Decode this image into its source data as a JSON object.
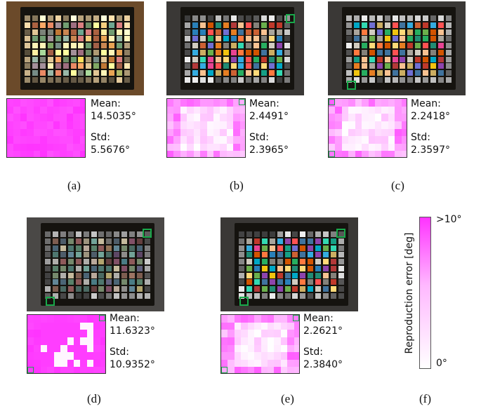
{
  "panels": [
    {
      "id": "a",
      "caption": "(a)",
      "mean_label": "Mean:",
      "mean_value": "14.5035°",
      "std_label": "Std:",
      "std_value": "5.5676°",
      "tone": "warm",
      "error_level": "uniform-high"
    },
    {
      "id": "b",
      "caption": "(b)",
      "mean_label": "Mean:",
      "mean_value": "2.4491°",
      "std_label": "Std:",
      "std_value": "2.3965°",
      "tone": "neutral",
      "error_level": "low"
    },
    {
      "id": "c",
      "caption": "(c)",
      "mean_label": "Mean:",
      "mean_value": "2.2418°",
      "std_label": "Std:",
      "std_value": "2.3597°",
      "tone": "neutral",
      "error_level": "low"
    },
    {
      "id": "d",
      "caption": "(d)",
      "mean_label": "Mean:",
      "mean_value": "11.6323°",
      "std_label": "Std:",
      "std_value": "10.9352°",
      "tone": "gray",
      "error_level": "high"
    },
    {
      "id": "e",
      "caption": "(e)",
      "mean_label": "Mean:",
      "mean_value": "2.2621°",
      "std_label": "Std:",
      "std_value": "2.3840°",
      "tone": "neutral",
      "error_level": "low"
    }
  ],
  "colorbar": {
    "caption": "(f)",
    "top_label": ">10°",
    "bottom_label": "0°",
    "axis_label": "Reproduction error [deg]",
    "max_color": "#ff33ff",
    "min_color": "#ffffff"
  },
  "accent": "#19a84a"
}
